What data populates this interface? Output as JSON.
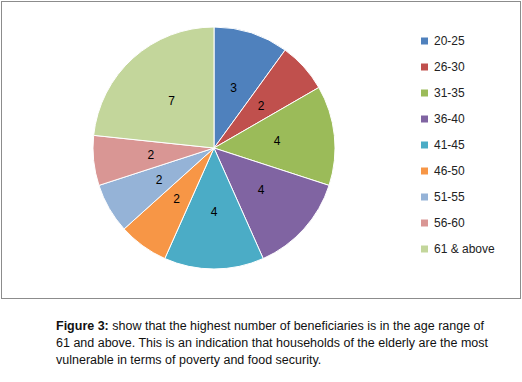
{
  "chart_data": {
    "type": "pie",
    "categories": [
      "20-25",
      "26-30",
      "31-35",
      "36-40",
      "41-45",
      "46-50",
      "51-55",
      "56-60",
      "61 & above"
    ],
    "values": [
      3,
      2,
      4,
      4,
      4,
      2,
      2,
      2,
      7
    ],
    "colors": [
      "#4f81bd",
      "#c0504d",
      "#9bbb59",
      "#8064a2",
      "#4bacc6",
      "#f79646",
      "#95b3d7",
      "#d99694",
      "#c3d69b"
    ],
    "data_labels": true,
    "legend": "right"
  },
  "caption": {
    "label": "Figure 3:",
    "text": "show that the highest number of beneficiaries is in the age range of 61 and above. This is an indication that households of the elderly are the most vulnerable in terms of poverty and food security."
  }
}
